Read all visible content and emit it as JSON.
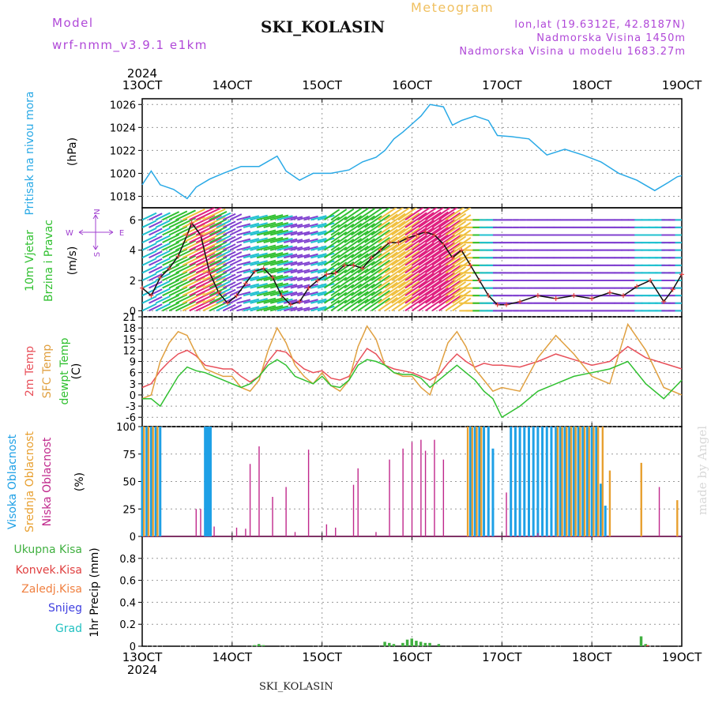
{
  "header": {
    "model_label": "Model",
    "model_name": "wrf-nmm_v3.9.1 e1km",
    "station": "SKI_KOLASIN",
    "meteogram": "Meteogram",
    "lonlat": "lon,lat (19.6312E, 42.8187N)",
    "altitude": "Nadmorska Visina 1450m",
    "model_altitude": "Nadmorska Visina u modelu 1683.27m",
    "made_by": "made by Angel",
    "footer_station": "SKI_KOLASIN"
  },
  "colors": {
    "pressure": "#29a9e6",
    "wind_speed": "#111111",
    "wind_dir_marks": "#e84040",
    "temp2m": "#e8505a",
    "sfc_temp": "#e0a040",
    "dewpoint": "#30c030",
    "cloud_high": "#1ea0e6",
    "cloud_mid": "#e8a030",
    "cloud_low": "#c0288c",
    "precip_total": "#40b040",
    "precip_conv": "#e04040",
    "precip_frz": "#f08040",
    "precip_snow": "#4040e0",
    "precip_grad": "#20c0c0",
    "barb_palette": [
      "#e02080",
      "#f0c040",
      "#30c030",
      "#20c0d0",
      "#8040d0",
      "#e04040"
    ]
  },
  "chart_data": [
    {
      "type": "line",
      "name": "pressure",
      "ylabel": "Pritisak na nivou mora",
      "unit": "(hPa)",
      "ylim": [
        1017,
        1026.5
      ],
      "yticks": [
        1018,
        1020,
        1022,
        1024,
        1026
      ],
      "x_start_year": "2024",
      "x_end_year": "2024",
      "xticks": [
        "13OCT",
        "14OCT",
        "15OCT",
        "16OCT",
        "17OCT",
        "18OCT",
        "19OCT"
      ],
      "grid": true,
      "series": [
        {
          "x": [
            13.0,
            13.1,
            13.2,
            13.35,
            13.5,
            13.6,
            13.75,
            13.9,
            14.1,
            14.3,
            14.5,
            14.6,
            14.75,
            14.9,
            15.1,
            15.3,
            15.45,
            15.6,
            15.7,
            15.8,
            15.9,
            16.0,
            16.1,
            16.2,
            16.35,
            16.45,
            16.55,
            16.7,
            16.85,
            16.95,
            17.1,
            17.3,
            17.5,
            17.7,
            17.9,
            18.1,
            18.3,
            18.5,
            18.7,
            18.85,
            18.95,
            19.0
          ],
          "y": [
            1019.0,
            1020.2,
            1019.0,
            1018.6,
            1017.8,
            1018.8,
            1019.5,
            1020.0,
            1020.6,
            1020.6,
            1021.5,
            1020.2,
            1019.4,
            1020.0,
            1020.0,
            1020.3,
            1021.0,
            1021.4,
            1022.0,
            1023.0,
            1023.6,
            1024.3,
            1025.0,
            1026.0,
            1025.8,
            1024.2,
            1024.6,
            1025.0,
            1024.6,
            1023.3,
            1023.2,
            1023.0,
            1021.6,
            1022.1,
            1021.6,
            1021.0,
            1020.0,
            1019.4,
            1018.5,
            1019.2,
            1019.7,
            1019.8
          ]
        }
      ]
    },
    {
      "type": "line",
      "name": "wind",
      "ylabel1": "10m Vjetar",
      "ylabel2": "Brzina i Pravac",
      "unit": "(m/s)",
      "compass": {
        "north": "N",
        "south": "S",
        "west": "W",
        "east": "E"
      },
      "ylim": [
        -0.4,
        6.8
      ],
      "yticks": [
        0,
        2,
        4,
        6
      ],
      "grid": true,
      "series": [
        {
          "name": "Brzina",
          "x": [
            13.0,
            13.1,
            13.2,
            13.3,
            13.4,
            13.5,
            13.55,
            13.65,
            13.75,
            13.85,
            13.95,
            14.05,
            14.15,
            14.25,
            14.35,
            14.45,
            14.55,
            14.65,
            14.75,
            14.85,
            14.95,
            15.05,
            15.15,
            15.25,
            15.35,
            15.45,
            15.55,
            15.65,
            15.75,
            15.85,
            15.95,
            16.05,
            16.15,
            16.25,
            16.35,
            16.45,
            16.55,
            16.65,
            16.75,
            16.85,
            16.95,
            17.05,
            17.2,
            17.4,
            17.6,
            17.8,
            18.0,
            18.2,
            18.35,
            18.5,
            18.65,
            18.8,
            18.9,
            19.0
          ],
          "y": [
            1.5,
            1.0,
            2.2,
            2.8,
            3.6,
            5.0,
            5.8,
            5.0,
            2.5,
            1.2,
            0.5,
            1.0,
            1.8,
            2.6,
            2.8,
            2.2,
            1.0,
            0.4,
            0.6,
            1.5,
            2.0,
            2.4,
            2.5,
            3.0,
            3.0,
            2.8,
            3.5,
            4.0,
            4.5,
            4.5,
            4.8,
            5.0,
            5.2,
            5.0,
            4.4,
            3.5,
            4.0,
            3.0,
            2.0,
            1.0,
            0.4,
            0.4,
            0.6,
            1.0,
            0.8,
            1.0,
            0.8,
            1.2,
            1.0,
            1.6,
            2.0,
            0.6,
            1.4,
            2.4
          ]
        }
      ]
    },
    {
      "type": "line",
      "name": "temperature",
      "ylabel_temp": "2m Temp",
      "ylabel_sfc": "SFC Temp",
      "ylabel_dew": "dewpt Temp",
      "unit": "(C)",
      "ylim": [
        -8.5,
        21
      ],
      "yticks": [
        -6,
        -3,
        0,
        3,
        6,
        9,
        12,
        15,
        18,
        21
      ],
      "grid": true,
      "series": [
        {
          "name": "2m Temp",
          "x": [
            13.0,
            13.1,
            13.2,
            13.3,
            13.4,
            13.5,
            13.6,
            13.7,
            13.8,
            13.9,
            14.0,
            14.1,
            14.2,
            14.3,
            14.4,
            14.5,
            14.6,
            14.7,
            14.8,
            14.9,
            15.0,
            15.1,
            15.2,
            15.3,
            15.4,
            15.5,
            15.6,
            15.7,
            15.8,
            15.9,
            16.0,
            16.1,
            16.2,
            16.3,
            16.4,
            16.5,
            16.6,
            16.7,
            16.8,
            16.9,
            17.0,
            17.2,
            17.4,
            17.6,
            17.8,
            18.0,
            18.2,
            18.4,
            18.6,
            18.8,
            19.0
          ],
          "y": [
            2.0,
            3.0,
            6.5,
            9.0,
            11.0,
            12.0,
            10.5,
            8.0,
            7.5,
            7.0,
            7.0,
            5.0,
            3.5,
            5.0,
            9.0,
            12.0,
            11.5,
            9.0,
            7.0,
            6.0,
            6.5,
            4.5,
            4.0,
            5.0,
            9.0,
            12.5,
            11.0,
            8.0,
            7.0,
            6.5,
            6.0,
            5.0,
            4.0,
            5.5,
            8.5,
            11.0,
            9.0,
            7.5,
            8.5,
            8.0,
            8.0,
            7.5,
            9.0,
            11.0,
            9.5,
            8.0,
            9.0,
            13.0,
            10.0,
            8.5,
            7.0
          ]
        },
        {
          "name": "SFC Temp",
          "x": [
            13.0,
            13.1,
            13.2,
            13.3,
            13.4,
            13.5,
            13.6,
            13.7,
            13.8,
            13.9,
            14.0,
            14.1,
            14.2,
            14.3,
            14.4,
            14.5,
            14.6,
            14.7,
            14.8,
            14.9,
            15.0,
            15.1,
            15.2,
            15.3,
            15.4,
            15.5,
            15.6,
            15.7,
            15.8,
            15.9,
            16.0,
            16.1,
            16.2,
            16.3,
            16.4,
            16.5,
            16.6,
            16.7,
            16.8,
            16.9,
            17.0,
            17.2,
            17.4,
            17.6,
            17.8,
            18.0,
            18.2,
            18.4,
            18.6,
            18.8,
            19.0
          ],
          "y": [
            -1.0,
            0.0,
            9.0,
            14.0,
            17.0,
            16.0,
            11.0,
            7.0,
            6.0,
            5.0,
            5.0,
            2.0,
            1.0,
            4.0,
            12.0,
            18.0,
            14.0,
            8.0,
            5.0,
            3.0,
            6.0,
            2.5,
            1.0,
            4.0,
            13.0,
            18.5,
            15.0,
            8.0,
            6.0,
            5.0,
            5.0,
            2.0,
            0.0,
            7.0,
            14.0,
            17.0,
            13.0,
            7.0,
            4.0,
            1.0,
            2.0,
            1.0,
            10.0,
            16.0,
            11.0,
            5.0,
            3.0,
            19.0,
            12.0,
            2.0,
            0.0
          ]
        },
        {
          "name": "dewpt Temp",
          "x": [
            13.0,
            13.1,
            13.2,
            13.3,
            13.4,
            13.5,
            13.6,
            13.7,
            13.8,
            13.9,
            14.0,
            14.1,
            14.2,
            14.3,
            14.4,
            14.5,
            14.6,
            14.7,
            14.8,
            14.9,
            15.0,
            15.1,
            15.2,
            15.3,
            15.4,
            15.5,
            15.6,
            15.7,
            15.8,
            15.9,
            16.0,
            16.1,
            16.2,
            16.3,
            16.4,
            16.5,
            16.6,
            16.7,
            16.8,
            16.9,
            17.0,
            17.2,
            17.4,
            17.6,
            17.8,
            18.0,
            18.2,
            18.4,
            18.6,
            18.8,
            19.0
          ],
          "y": [
            -1.0,
            -1.0,
            -3.0,
            1.0,
            5.0,
            7.5,
            6.5,
            6.0,
            5.0,
            4.0,
            3.0,
            2.0,
            3.0,
            5.0,
            8.0,
            9.5,
            8.0,
            5.0,
            4.0,
            3.0,
            5.0,
            2.5,
            2.0,
            4.0,
            8.0,
            9.5,
            9.0,
            8.0,
            6.0,
            5.5,
            5.5,
            4.5,
            2.0,
            4.0,
            6.0,
            8.0,
            6.0,
            4.0,
            1.0,
            -1.0,
            -6.0,
            -3.0,
            1.0,
            3.0,
            5.0,
            6.0,
            7.0,
            9.0,
            3.0,
            -1.0,
            4.0
          ]
        }
      ]
    },
    {
      "type": "bar",
      "name": "clouds",
      "ylabel_high": "Visoka Oblacnost",
      "ylabel_mid": "Srednja Oblacnost",
      "ylabel_low": "Niska Oblacnost",
      "unit": "(%)",
      "ylim": [
        0,
        100
      ],
      "yticks": [
        0,
        25,
        50,
        75,
        100
      ],
      "grid": true,
      "series": [
        {
          "name": "Visoka Oblacnost",
          "x": [
            13.0,
            13.05,
            13.1,
            13.15,
            13.2,
            13.7,
            13.72,
            13.74,
            13.76,
            16.65,
            16.7,
            16.75,
            16.8,
            16.85,
            16.9,
            17.1,
            17.15,
            17.2,
            17.25,
            17.3,
            17.35,
            17.4,
            17.45,
            17.5,
            17.55,
            17.6,
            17.65,
            17.7,
            17.75,
            17.8,
            17.85,
            17.9,
            17.95,
            18.0,
            18.05,
            18.1,
            18.15
          ],
          "values": [
            100,
            100,
            100,
            100,
            100,
            100,
            100,
            100,
            100,
            100,
            100,
            100,
            100,
            100,
            80,
            100,
            100,
            100,
            100,
            100,
            100,
            100,
            100,
            100,
            100,
            100,
            100,
            100,
            100,
            100,
            100,
            100,
            100,
            100,
            100,
            48,
            28
          ]
        },
        {
          "name": "Srednja Oblacnost",
          "x": [
            13.02,
            13.07,
            13.12,
            13.17,
            16.62,
            16.67,
            16.72,
            16.77,
            17.62,
            17.67,
            17.72,
            17.77,
            17.82,
            17.87,
            17.92,
            17.97,
            18.02,
            18.07,
            18.12,
            18.2,
            18.55,
            18.95
          ],
          "values": [
            100,
            100,
            100,
            100,
            100,
            100,
            100,
            100,
            100,
            100,
            100,
            100,
            100,
            100,
            100,
            100,
            100,
            100,
            100,
            60,
            67,
            33
          ]
        },
        {
          "name": "Niska Oblacnost",
          "x": [
            13.6,
            13.65,
            13.8,
            14.05,
            14.15,
            14.2,
            14.3,
            14.45,
            14.6,
            14.7,
            14.85,
            15.05,
            15.15,
            15.35,
            15.4,
            15.6,
            15.75,
            15.9,
            16.0,
            16.1,
            16.15,
            16.25,
            16.35,
            17.05,
            17.4,
            18.75,
            19.0
          ],
          "values": [
            25,
            25,
            9,
            8,
            7,
            66,
            82,
            36,
            45,
            4,
            79,
            11,
            8,
            47,
            62,
            4,
            70,
            80,
            86,
            88,
            78,
            88,
            70,
            40,
            3,
            45,
            0
          ]
        }
      ]
    },
    {
      "type": "bar",
      "name": "precipitation",
      "ylabel_total": "Ukupna Kisa",
      "ylabel_conv": "Konvek.Kisa",
      "ylabel_frz": "Zaledj.Kisa",
      "ylabel_snow": "Snijeg",
      "ylabel_grad": "Grad",
      "unit": "1hr Precip (mm)",
      "ylim": [
        0,
        1.0
      ],
      "yticks": [
        0,
        0.2,
        0.4,
        0.6,
        0.8
      ],
      "grid": true,
      "series": [
        {
          "name": "Ukupna Kisa",
          "x": [
            14.25,
            14.3,
            14.35,
            15.7,
            15.75,
            15.8,
            15.9,
            15.95,
            16.0,
            16.05,
            16.1,
            16.15,
            16.2,
            16.3,
            18.55,
            18.6
          ],
          "values": [
            0.01,
            0.02,
            0.01,
            0.04,
            0.03,
            0.02,
            0.03,
            0.06,
            0.07,
            0.05,
            0.04,
            0.03,
            0.03,
            0.02,
            0.09,
            0.02
          ]
        },
        {
          "name": "Konvek.Kisa",
          "x": [
            18.62
          ],
          "values": [
            0.01
          ]
        }
      ]
    }
  ]
}
